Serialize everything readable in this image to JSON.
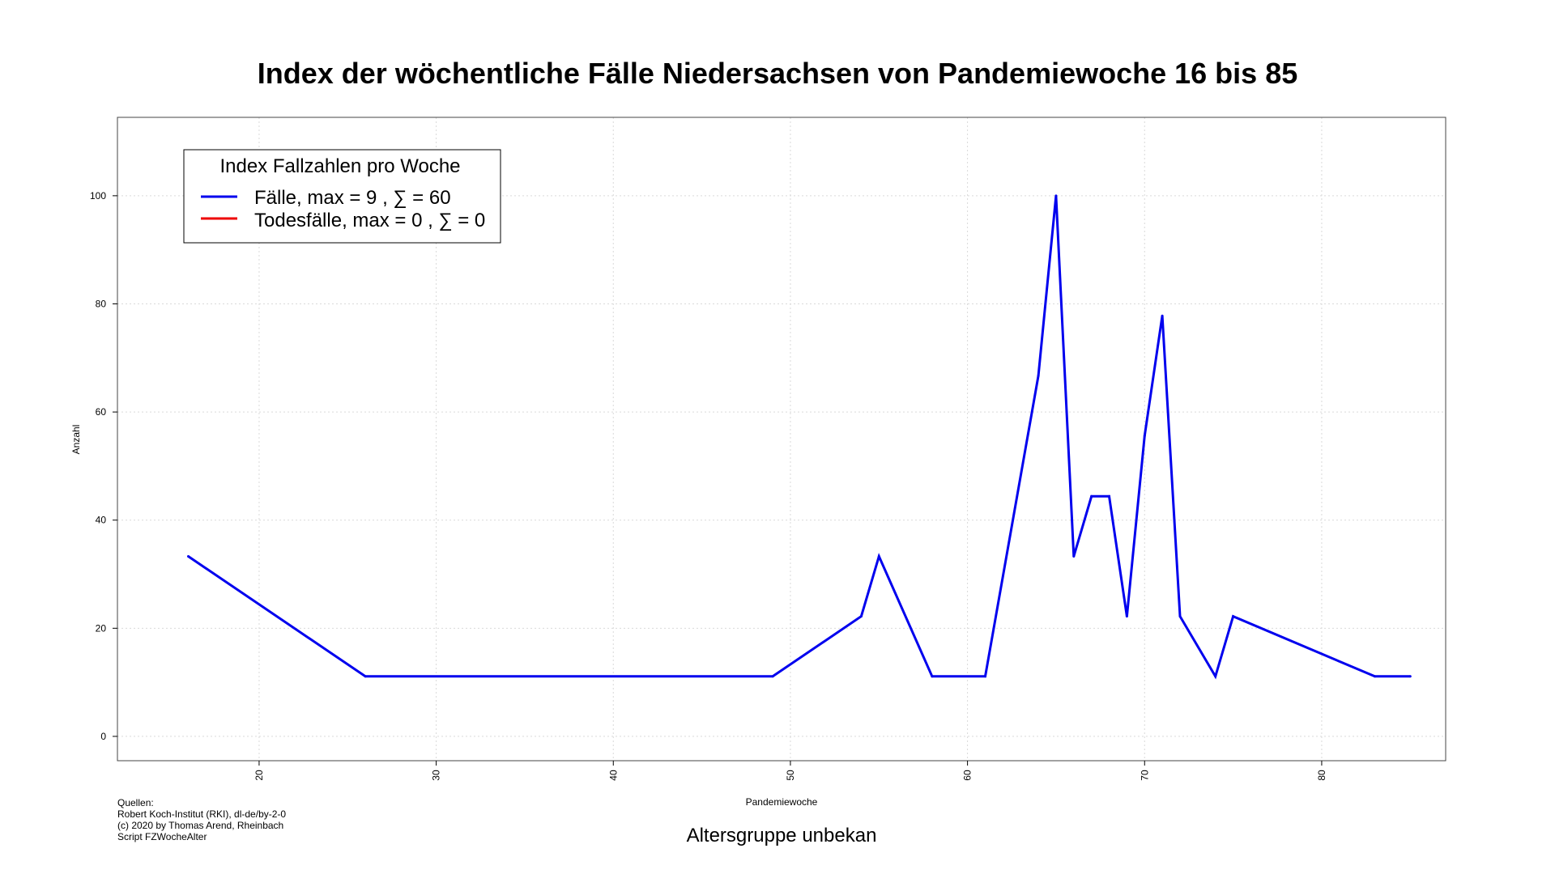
{
  "chart_data": {
    "type": "line",
    "title": "Index der wöchentliche Fälle Niedersachsen von Pandemiewoche 16 bis 85",
    "subtitle": "Altersgruppe unbekan",
    "xlabel": "Pandemiewoche",
    "ylabel": "Anzahl",
    "xlim": [
      12,
      87
    ],
    "ylim": [
      -4.5,
      114.5
    ],
    "xticks": [
      20,
      30,
      40,
      50,
      60,
      70,
      80
    ],
    "yticks": [
      0,
      20,
      40,
      60,
      80,
      100
    ],
    "grid": true,
    "legend": {
      "title": "Index Fallzahlen pro Woche",
      "position": "top-left",
      "entries": [
        {
          "label": "Fälle, max = 9 ,  ∑  = 60",
          "color": "#0000ee"
        },
        {
          "label": "Todesfälle, max = 0 ,  ∑  = 0",
          "color": "#ee0000"
        }
      ]
    },
    "series": [
      {
        "color": "#0000ee",
        "points": [
          [
            16,
            33.3
          ],
          [
            26,
            11.1
          ],
          [
            49,
            11.1
          ],
          [
            54,
            22.2
          ],
          [
            55,
            33.3
          ],
          [
            58,
            11.1
          ],
          [
            61,
            11.1
          ],
          [
            64,
            66.7
          ],
          [
            65,
            100
          ],
          [
            66,
            33.3
          ],
          [
            67,
            44.4
          ],
          [
            68,
            44.4
          ],
          [
            69,
            22.2
          ],
          [
            70,
            55.6
          ],
          [
            71,
            77.8
          ],
          [
            72,
            22.2
          ],
          [
            74,
            11.1
          ],
          [
            75,
            22.2
          ],
          [
            83,
            11.1
          ],
          [
            85,
            11.1
          ]
        ]
      }
    ]
  },
  "sources": {
    "lines": [
      "Quellen:",
      "Robert Koch-Institut (RKI), dl-de/by-2-0",
      "(c) 2020 by Thomas Arend, Rheinbach",
      "Script FZWocheAlter"
    ]
  }
}
